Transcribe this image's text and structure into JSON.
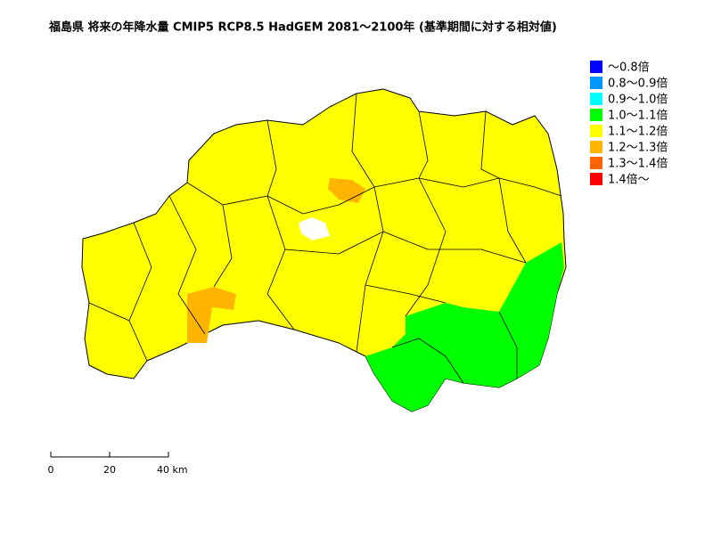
{
  "title": "福島県 将来の年降水量 CMIP5 RCP8.5 HadGEM 2081～2100年 (基準期間に対する相対値)",
  "legend": [
    {
      "label": "～0.8倍",
      "color": "#0000ff"
    },
    {
      "label": "0.8～0.9倍",
      "color": "#0096ff"
    },
    {
      "label": "0.9～1.0倍",
      "color": "#00ffff"
    },
    {
      "label": "1.0～1.1倍",
      "color": "#00ff00"
    },
    {
      "label": "1.1～1.2倍",
      "color": "#ffff00"
    },
    {
      "label": "1.2～1.3倍",
      "color": "#ffb400"
    },
    {
      "label": "1.3～1.4倍",
      "color": "#ff6400"
    },
    {
      "label": "1.4倍～",
      "color": "#ff0000"
    }
  ],
  "scale_bar": {
    "labels": [
      "0",
      "20",
      "40 km"
    ]
  }
}
